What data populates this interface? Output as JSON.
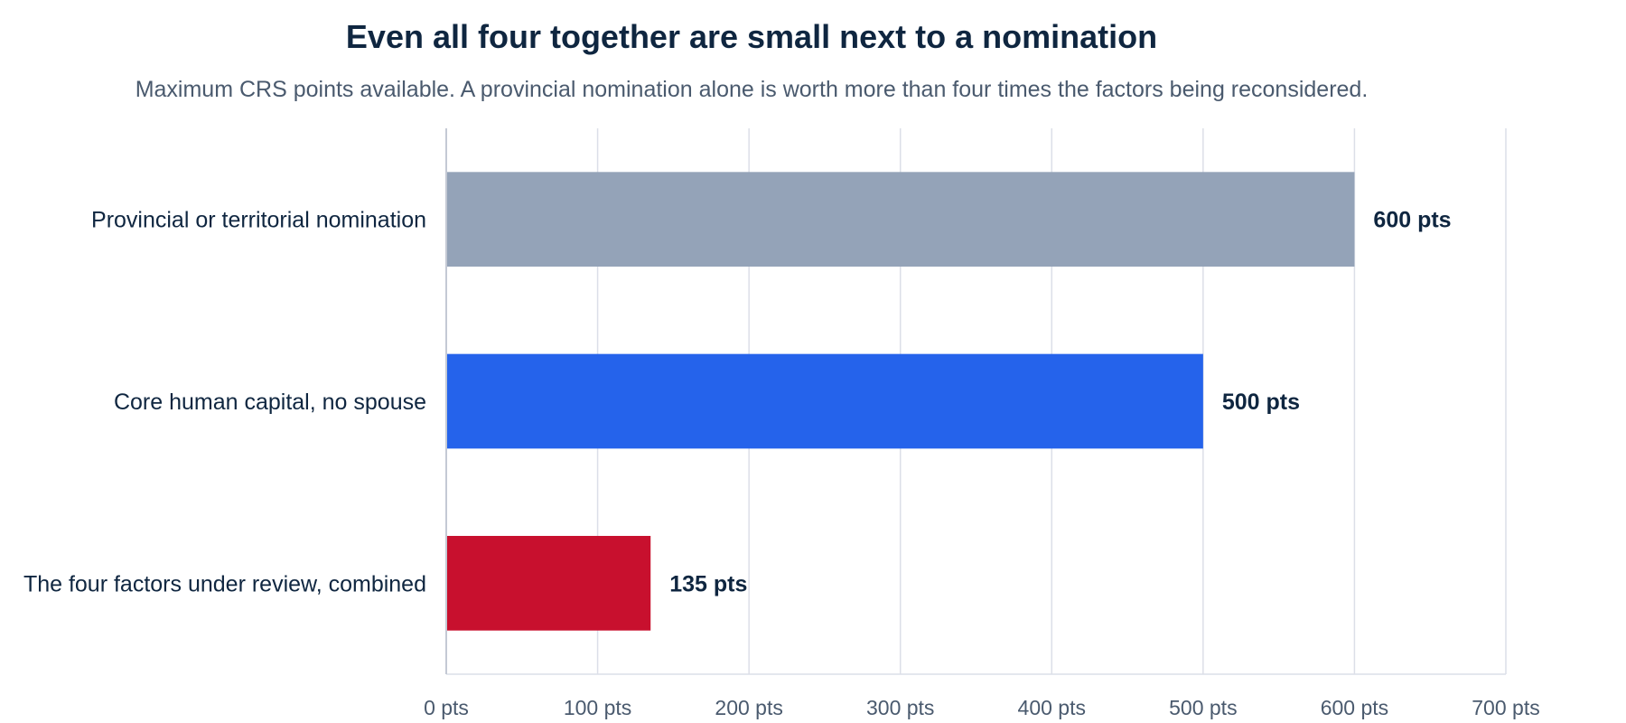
{
  "chart_data": {
    "type": "bar",
    "orientation": "horizontal",
    "title": "Even all four together are small next to a nomination",
    "subtitle": "Maximum CRS points available. A provincial nomination alone is worth more than four times the factors being reconsidered.",
    "categories": [
      "Provincial or territorial nomination",
      "Core human capital, no spouse",
      "The four factors under review, combined"
    ],
    "values": [
      600,
      500,
      135
    ],
    "value_labels": [
      "600 pts",
      "500 pts",
      "135 pts"
    ],
    "bar_colors": [
      "#94a3b8",
      "#2563eb",
      "#c8102e"
    ],
    "xlim": [
      0,
      700
    ],
    "x_ticks": [
      0,
      100,
      200,
      300,
      400,
      500,
      600,
      700
    ],
    "x_tick_labels": [
      "0 pts",
      "100 pts",
      "200 pts",
      "300 pts",
      "400 pts",
      "500 pts",
      "600 pts",
      "700 pts"
    ],
    "grid": true,
    "legend": "none"
  }
}
